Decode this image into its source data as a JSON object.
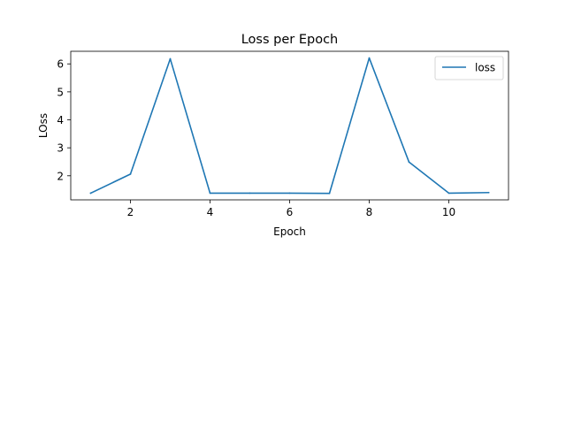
{
  "chart_data": {
    "type": "line",
    "title": "Loss per Epoch",
    "xlabel": "Epoch",
    "ylabel": "LOss",
    "xlim": [
      0.5,
      11.5
    ],
    "ylim": [
      1.14,
      6.45
    ],
    "xticks": [
      2,
      4,
      6,
      8,
      10
    ],
    "yticks": [
      2,
      3,
      4,
      5,
      6
    ],
    "grid": false,
    "legend_position": "top-right",
    "series": [
      {
        "name": "loss",
        "color": "#1f77b4",
        "x": [
          1,
          2,
          3,
          4,
          5,
          6,
          7,
          8,
          9,
          10,
          11
        ],
        "y": [
          1.38,
          2.06,
          6.18,
          1.38,
          1.38,
          1.38,
          1.37,
          6.21,
          2.49,
          1.38,
          1.4
        ]
      }
    ]
  }
}
